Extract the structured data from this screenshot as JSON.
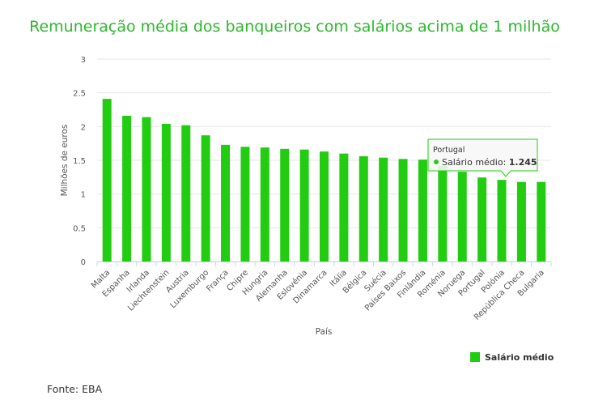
{
  "chart_data": {
    "type": "bar",
    "title": "Remuneração média dos banqueiros com salários acima de 1 milhão",
    "xlabel": "País",
    "ylabel": "Milhões de euros",
    "ylim": [
      0,
      3
    ],
    "yticks": [
      "0",
      "0.5",
      "1",
      "1.5",
      "2",
      "2.5",
      "3"
    ],
    "grid": true,
    "legend_position": "bottom-right",
    "color": "#22cc11",
    "categories": [
      "Malta",
      "Espanha",
      "Irlanda",
      "Liechtenstein",
      "Austria",
      "Luxemburgo",
      "França",
      "Chipre",
      "Hungria",
      "Alemanha",
      "Eslovénia",
      "Dinamarca",
      "Itália",
      "Bélgica",
      "Suécia",
      "Países Baixos",
      "Finlândia",
      "Roménia",
      "Noruega",
      "Portugal",
      "Polónia",
      "República Checa",
      "Bulgaria"
    ],
    "series": [
      {
        "name": "Salário médio",
        "values": [
          2.41,
          2.16,
          2.14,
          2.04,
          2.02,
          1.87,
          1.73,
          1.7,
          1.69,
          1.67,
          1.66,
          1.63,
          1.6,
          1.56,
          1.54,
          1.52,
          1.51,
          1.42,
          1.33,
          1.245,
          1.21,
          1.18,
          1.18
        ]
      }
    ],
    "tooltip": {
      "category": "Portugal",
      "label": "Salário médio: ",
      "value": "1.245"
    },
    "source": "Fonte: EBA"
  }
}
